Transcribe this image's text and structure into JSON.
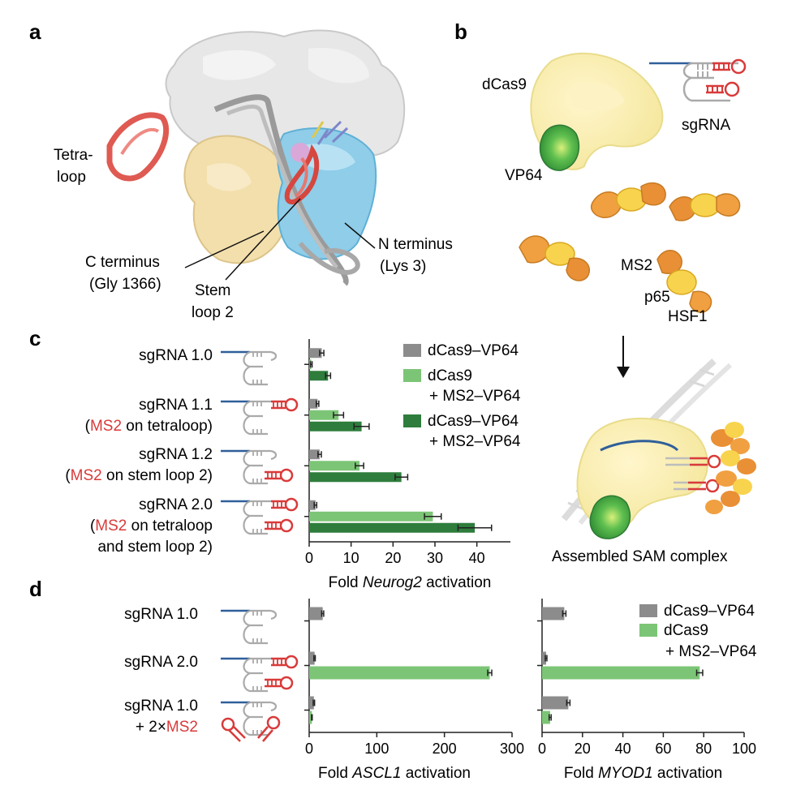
{
  "panels": {
    "a": "a",
    "b": "b",
    "c": "c",
    "d": "d"
  },
  "panel_a": {
    "tetraloop": [
      "Tetra-",
      "loop"
    ],
    "c_terminus": [
      "C terminus",
      "(Gly 1366)"
    ],
    "stem_loop": [
      "Stem",
      "loop 2"
    ],
    "n_terminus": [
      "N terminus",
      "(Lys 3)"
    ]
  },
  "panel_b": {
    "dcas9": "dCas9",
    "vp64": "VP64",
    "sgrna": "sgRNA",
    "ms2": "MS2",
    "p65": "p65",
    "hsf1": "HSF1",
    "assembled": "Assembled SAM complex"
  },
  "colors": {
    "grey": "#8c8c8c",
    "light_green": "#7cc576",
    "dark_green": "#2e7d3c",
    "red": "#d93a3a",
    "blue": "#2f5f9a",
    "cas9_yellow": "#fbf0b4",
    "orange": "#e98f35"
  },
  "panel_c": {
    "rows": [
      {
        "name": "sgRNA 1.0",
        "sub": []
      },
      {
        "name": "sgRNA 1.1",
        "sub": [
          {
            "pre": "(",
            "red": "MS2",
            "post": " on tetraloop)"
          }
        ]
      },
      {
        "name": "sgRNA 1.2",
        "sub": [
          {
            "pre": "(",
            "red": "MS2",
            "post": " on stem loop 2)"
          }
        ]
      },
      {
        "name": "sgRNA 2.0",
        "sub": [
          {
            "pre": "(",
            "red": "MS2",
            "post": " on tetraloop"
          },
          {
            "pre": "",
            "red": "",
            "post": "and stem loop 2)"
          }
        ]
      }
    ],
    "legend": [
      {
        "lines": [
          "dCas9–VP64"
        ]
      },
      {
        "lines": [
          "dCas9",
          "+ MS2–VP64"
        ]
      },
      {
        "lines": [
          "dCas9–VP64",
          "+ MS2–VP64"
        ]
      }
    ]
  },
  "panel_d": {
    "rows": [
      {
        "name": "sgRNA 1.0",
        "sub": []
      },
      {
        "name": "sgRNA 2.0",
        "sub": []
      },
      {
        "name": "sgRNA 1.0",
        "sub": [
          {
            "pre": "+ 2×",
            "red": "MS2",
            "post": ""
          }
        ]
      }
    ],
    "legend": [
      {
        "lines": [
          "dCas9–VP64"
        ]
      },
      {
        "lines": [
          "dCas9",
          "+ MS2–VP64"
        ]
      }
    ]
  },
  "chart_data": [
    {
      "type": "bar",
      "orientation": "horizontal",
      "categories": [
        "sgRNA 1.0",
        "sgRNA 1.1",
        "sgRNA 1.2",
        "sgRNA 2.0"
      ],
      "series": [
        {
          "name": "dCas9–VP64",
          "values": [
            3,
            2,
            2.5,
            1.5
          ],
          "errors": [
            0.5,
            0.3,
            0.4,
            0.3
          ]
        },
        {
          "name": "dCas9 + MS2–VP64",
          "values": [
            0.5,
            7,
            12,
            29.5
          ],
          "errors": [
            0.2,
            1.2,
            1.0,
            2.0
          ]
        },
        {
          "name": "dCas9–VP64 + MS2–VP64",
          "values": [
            4.5,
            12.5,
            22,
            39.5
          ],
          "errors": [
            0.6,
            1.8,
            1.5,
            4.0
          ]
        }
      ],
      "xlabel_pre": "Fold ",
      "xlabel_italic": "Neurog2",
      "xlabel_post": " activation",
      "xticks": [
        0,
        10,
        20,
        30,
        40
      ],
      "xlim": [
        0,
        48
      ]
    },
    {
      "type": "bar",
      "orientation": "horizontal",
      "categories": [
        "sgRNA 1.0",
        "sgRNA 2.0",
        "sgRNA 1.0 + 2×MS2"
      ],
      "series": [
        {
          "name": "dCas9–VP64",
          "values": [
            20,
            8,
            7
          ],
          "errors": [
            1.5,
            1,
            1
          ]
        },
        {
          "name": "dCas9 + MS2–VP64",
          "values": [
            0,
            267,
            4
          ],
          "errors": [
            0,
            3,
            0.5
          ]
        }
      ],
      "xlabel_pre": "Fold ",
      "xlabel_italic": "ASCL1",
      "xlabel_post": " activation",
      "xticks": [
        0,
        100,
        200,
        300
      ],
      "xlim": [
        0,
        300
      ]
    },
    {
      "type": "bar",
      "orientation": "horizontal",
      "categories": [
        "sgRNA 1.0",
        "sgRNA 2.0",
        "sgRNA 1.0 + 2×MS2"
      ],
      "series": [
        {
          "name": "dCas9–VP64",
          "values": [
            11,
            2,
            13
          ],
          "errors": [
            0.8,
            0.4,
            0.8
          ]
        },
        {
          "name": "dCas9 + MS2–VP64",
          "values": [
            0,
            78,
            4
          ],
          "errors": [
            0,
            1.5,
            0.5
          ]
        }
      ],
      "xlabel_pre": "Fold ",
      "xlabel_italic": "MYOD1",
      "xlabel_post": " activation",
      "xticks": [
        0,
        20,
        40,
        60,
        80,
        100
      ],
      "xlim": [
        0,
        100
      ]
    }
  ]
}
